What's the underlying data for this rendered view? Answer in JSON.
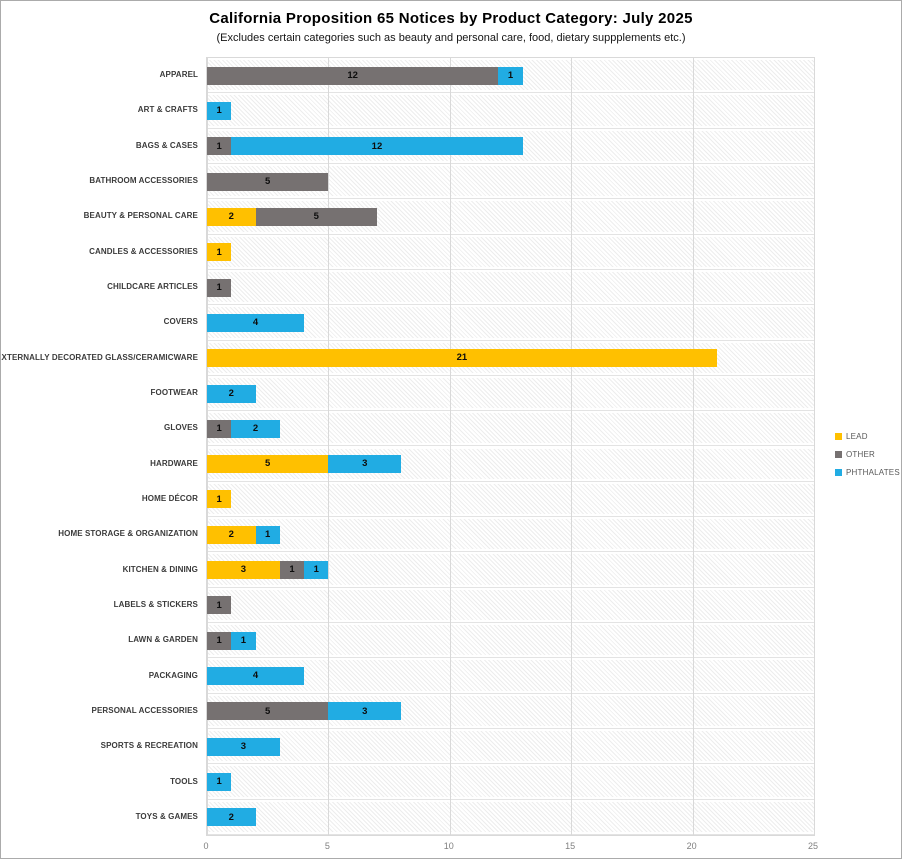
{
  "chart_data": {
    "type": "bar",
    "orientation": "horizontal",
    "stacked": true,
    "title": "California Proposition 65 Notices by Product Category: July 2025",
    "subtitle": "(Excludes certain categories such as beauty and personal care, food, dietary suppplements etc.)",
    "xlabel": "",
    "ylabel": "",
    "xlim": [
      0,
      25
    ],
    "x_ticks": [
      "0",
      "5",
      "10",
      "15",
      "20",
      "25"
    ],
    "grid": true,
    "legend_position": "right",
    "plot_background_pattern": "diagonal-hatch",
    "colors": {
      "lead": "#FFC000",
      "other": "#767171",
      "phthalates": "#21ACE3"
    },
    "legend": [
      {
        "label": "LEAD",
        "series": "lead"
      },
      {
        "label": "OTHER",
        "series": "other"
      },
      {
        "label": "PHTHALATES",
        "series": "phthalates"
      }
    ],
    "categories": [
      "APPAREL",
      "ART & CRAFTS",
      "BAGS & CASES",
      "BATHROOM ACCESSORIES",
      "BEAUTY & PERSONAL CARE",
      "CANDLES & ACCESSORIES",
      "CHILDCARE ARTICLES",
      "COVERS",
      "EXTERNALLY DECORATED GLASS/CERAMICWARE",
      "FOOTWEAR",
      "GLOVES",
      "HARDWARE",
      "HOME DÉCOR",
      "HOME STORAGE & ORGANIZATION",
      "KITCHEN & DINING",
      "LABELS & STICKERS",
      "LAWN & GARDEN",
      "PACKAGING",
      "PERSONAL ACCESSORIES",
      "SPORTS & RECREATION",
      "TOOLS",
      "TOYS & GAMES"
    ],
    "series": [
      {
        "name": "LEAD",
        "key": "lead",
        "values": [
          0,
          0,
          0,
          0,
          2,
          1,
          0,
          0,
          21,
          0,
          0,
          5,
          1,
          2,
          3,
          0,
          0,
          0,
          0,
          0,
          0,
          0
        ]
      },
      {
        "name": "OTHER",
        "key": "other",
        "values": [
          12,
          0,
          1,
          5,
          5,
          0,
          1,
          0,
          0,
          0,
          1,
          0,
          0,
          0,
          1,
          1,
          1,
          0,
          5,
          0,
          0,
          0
        ]
      },
      {
        "name": "PHTHALATES",
        "key": "phthalates",
        "values": [
          1,
          1,
          12,
          0,
          0,
          0,
          0,
          4,
          0,
          2,
          2,
          3,
          0,
          1,
          1,
          0,
          1,
          4,
          3,
          3,
          1,
          2
        ]
      }
    ]
  }
}
